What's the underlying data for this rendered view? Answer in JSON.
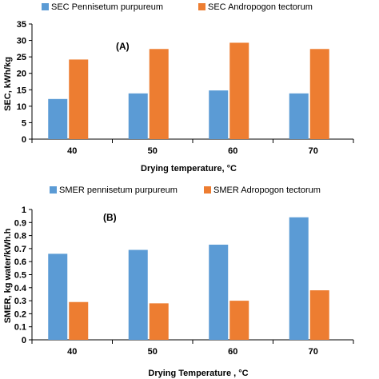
{
  "colors": {
    "series1": "#5b9bd5",
    "series2": "#ed7d31",
    "axis": "#000000"
  },
  "chart_data": [
    {
      "type": "bar",
      "panel_label": "(A)",
      "categories": [
        "40",
        "50",
        "60",
        "70"
      ],
      "series": [
        {
          "name": "SEC Pennisetum purpureum",
          "values": [
            12.2,
            13.9,
            14.8,
            13.9
          ]
        },
        {
          "name": "SEC Andropogon tectorum",
          "values": [
            24.2,
            27.4,
            29.3,
            27.4
          ]
        }
      ],
      "xlabel": "Drying temperature, °C",
      "ylabel": "SEC, kWh/kg",
      "ylim": [
        0,
        35
      ],
      "yticks": [
        "0",
        "5",
        "10",
        "15",
        "20",
        "25",
        "30",
        "35"
      ],
      "legend_position": "top"
    },
    {
      "type": "bar",
      "panel_label": "(B)",
      "categories": [
        "40",
        "50",
        "60",
        "70"
      ],
      "series": [
        {
          "name": "SMER pennisetum purpureum",
          "values": [
            0.66,
            0.69,
            0.73,
            0.94
          ]
        },
        {
          "name": "SMER Adropogon tectorum",
          "values": [
            0.29,
            0.28,
            0.3,
            0.38
          ]
        }
      ],
      "xlabel": "Drying Temperature , °C",
      "ylabel": "SMER, kg water/kWh.h",
      "ylim": [
        0,
        1
      ],
      "yticks": [
        "0",
        "0.1",
        "0.2",
        "0.3",
        "0.4",
        "0.5",
        "0.6",
        "0.7",
        "0.8",
        "0.9",
        "1"
      ],
      "legend_position": "top"
    }
  ]
}
